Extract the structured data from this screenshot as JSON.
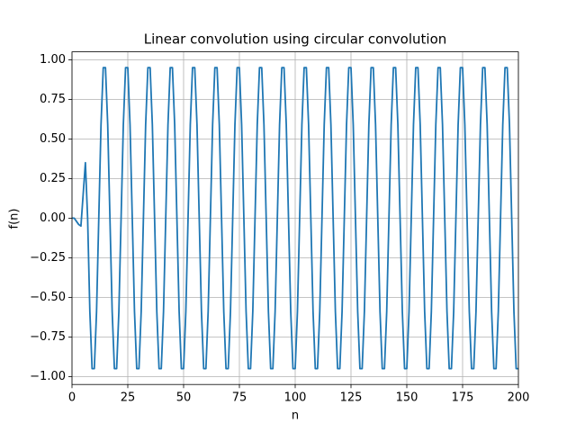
{
  "chart_data": {
    "type": "line",
    "title": "Linear convolution using circular convolution",
    "xlabel": "n",
    "ylabel": "f(n)",
    "x": [
      0,
      1,
      2,
      3,
      4,
      5,
      6,
      7,
      8,
      9,
      10,
      11,
      12,
      13,
      14,
      15,
      16,
      17,
      18,
      19,
      20,
      21,
      22,
      23,
      24,
      25,
      26,
      27,
      28,
      29,
      30,
      31,
      32,
      33,
      34,
      35,
      36,
      37,
      38,
      39,
      40,
      41,
      42,
      43,
      44,
      45,
      46,
      47,
      48,
      49,
      50,
      51,
      52,
      53,
      54,
      55,
      56,
      57,
      58,
      59,
      60,
      61,
      62,
      63,
      64,
      65,
      66,
      67,
      68,
      69,
      70,
      71,
      72,
      73,
      74,
      75,
      76,
      77,
      78,
      79,
      80,
      81,
      82,
      83,
      84,
      85,
      86,
      87,
      88,
      89,
      90,
      91,
      92,
      93,
      94,
      95,
      96,
      97,
      98,
      99,
      100,
      101,
      102,
      103,
      104,
      105,
      106,
      107,
      108,
      109,
      110,
      111,
      112,
      113,
      114,
      115,
      116,
      117,
      118,
      119,
      120,
      121,
      122,
      123,
      124,
      125,
      126,
      127,
      128,
      129,
      130,
      131,
      132,
      133,
      134,
      135,
      136,
      137,
      138,
      139,
      140,
      141,
      142,
      143,
      144,
      145,
      146,
      147,
      148,
      149,
      150,
      151,
      152,
      153,
      154,
      155,
      156,
      157,
      158,
      159,
      160,
      161,
      162,
      163,
      164,
      165,
      166,
      167,
      168,
      169,
      170,
      171,
      172,
      173,
      174,
      175,
      176,
      177,
      178,
      179,
      180,
      181,
      182,
      183,
      184,
      185,
      186,
      187,
      188,
      189,
      190,
      191,
      192,
      193,
      194,
      195,
      196,
      197,
      198,
      199,
      200
    ],
    "series": [
      {
        "name": "f(n)",
        "color": "#1f77b4",
        "values": [
          0,
          0,
          -0.02,
          -0.04,
          -0.05,
          0.15,
          0.35,
          0,
          -0.59,
          -0.95,
          -0.95,
          -0.59,
          0,
          0.59,
          0.95,
          0.95,
          0.59,
          0,
          -0.59,
          -0.95,
          -0.95,
          -0.59,
          0,
          0.59,
          0.95,
          0.95,
          0.59,
          0,
          -0.59,
          -0.95,
          -0.95,
          -0.59,
          0,
          0.59,
          0.95,
          0.95,
          0.59,
          0,
          -0.59,
          -0.95,
          -0.95,
          -0.59,
          0,
          0.59,
          0.95,
          0.95,
          0.59,
          0,
          -0.59,
          -0.95,
          -0.95,
          -0.59,
          0,
          0.59,
          0.95,
          0.95,
          0.59,
          0,
          -0.59,
          -0.95,
          -0.95,
          -0.59,
          0,
          0.59,
          0.95,
          0.95,
          0.59,
          0,
          -0.59,
          -0.95,
          -0.95,
          -0.59,
          0,
          0.59,
          0.95,
          0.95,
          0.59,
          0,
          -0.59,
          -0.95,
          -0.95,
          -0.59,
          0,
          0.59,
          0.95,
          0.95,
          0.59,
          0,
          -0.59,
          -0.95,
          -0.95,
          -0.59,
          0,
          0.59,
          0.95,
          0.95,
          0.59,
          0,
          -0.59,
          -0.95,
          -0.95,
          -0.59,
          0,
          0.59,
          0.95,
          0.95,
          0.59,
          0,
          -0.59,
          -0.95,
          -0.95,
          -0.59,
          0,
          0.59,
          0.95,
          0.95,
          0.59,
          0,
          -0.59,
          -0.95,
          -0.95,
          -0.59,
          0,
          0.59,
          0.95,
          0.95,
          0.59,
          0,
          -0.59,
          -0.95,
          -0.95,
          -0.59,
          0,
          0.59,
          0.95,
          0.95,
          0.59,
          0,
          -0.59,
          -0.95,
          -0.95,
          -0.59,
          0,
          0.59,
          0.95,
          0.95,
          0.59,
          0,
          -0.59,
          -0.95,
          -0.95,
          -0.59,
          0,
          0.59,
          0.95,
          0.95,
          0.59,
          0,
          -0.59,
          -0.95,
          -0.95,
          -0.59,
          0,
          0.59,
          0.95,
          0.95,
          0.59,
          0,
          -0.59,
          -0.95,
          -0.95,
          -0.59,
          0,
          0.59,
          0.95,
          0.95,
          0.59,
          0,
          -0.59,
          -0.95,
          -0.95,
          -0.59,
          0,
          0.59,
          0.95,
          0.95,
          0.59,
          0,
          -0.59,
          -0.95,
          -0.95,
          -0.59,
          0,
          0.59,
          0.95,
          0.95,
          0.59,
          0,
          -0.59,
          -0.95,
          -0.95
        ]
      }
    ],
    "xlim": [
      0,
      200
    ],
    "xticks": [
      0,
      25,
      50,
      75,
      100,
      125,
      150,
      175,
      200
    ],
    "ylim": [
      -1.05,
      1.05
    ],
    "yticks": [
      {
        "value": -1,
        "label": "−1.00"
      },
      {
        "value": -0.75,
        "label": "−0.75"
      },
      {
        "value": -0.5,
        "label": "−0.50"
      },
      {
        "value": -0.25,
        "label": "−0.25"
      },
      {
        "value": 0,
        "label": "0.00"
      },
      {
        "value": 0.25,
        "label": "0.25"
      },
      {
        "value": 0.5,
        "label": "0.50"
      },
      {
        "value": 0.75,
        "label": "0.75"
      },
      {
        "value": 1,
        "label": "1.00"
      }
    ],
    "grid": true
  }
}
